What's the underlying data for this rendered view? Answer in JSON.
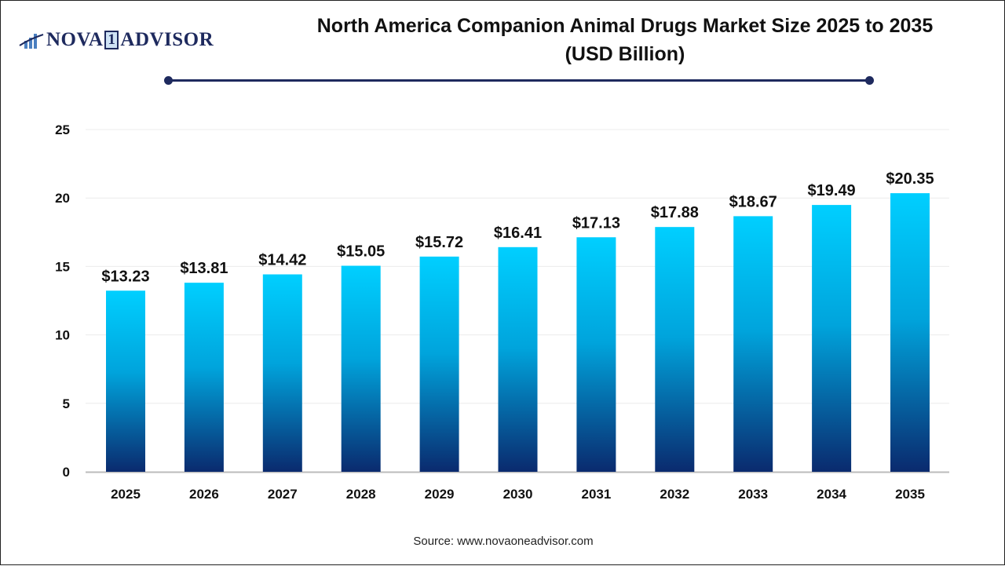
{
  "logo": {
    "left": "NOVA",
    "mid": "1",
    "right": "ADVISOR"
  },
  "title_line1": "North America Companion Animal Drugs Market Size 2025 to 2035",
  "title_line2": "(USD Billion)",
  "source": "Source: www.novaoneadvisor.com",
  "colors": {
    "bar_top": "#00cfff",
    "bar_bottom": "#0a2a6e",
    "accent": "#1e2a5e"
  },
  "chart_data": {
    "type": "bar",
    "title": "North America Companion Animal Drugs Market Size 2025 to 2035 (USD Billion)",
    "categories": [
      "2025",
      "2026",
      "2027",
      "2028",
      "2029",
      "2030",
      "2031",
      "2032",
      "2033",
      "2034",
      "2035"
    ],
    "values": [
      13.23,
      13.81,
      14.42,
      15.05,
      15.72,
      16.41,
      17.13,
      17.88,
      18.67,
      19.49,
      20.35
    ],
    "data_labels": [
      "$13.23",
      "$13.81",
      "$14.42",
      "$15.05",
      "$15.72",
      "$16.41",
      "$17.13",
      "$17.88",
      "$18.67",
      "$19.49",
      "$20.35"
    ],
    "yticks": [
      0,
      5,
      10,
      15,
      20,
      25
    ],
    "ylim": [
      0,
      25
    ],
    "grid": true,
    "xlabel": "",
    "ylabel": ""
  }
}
